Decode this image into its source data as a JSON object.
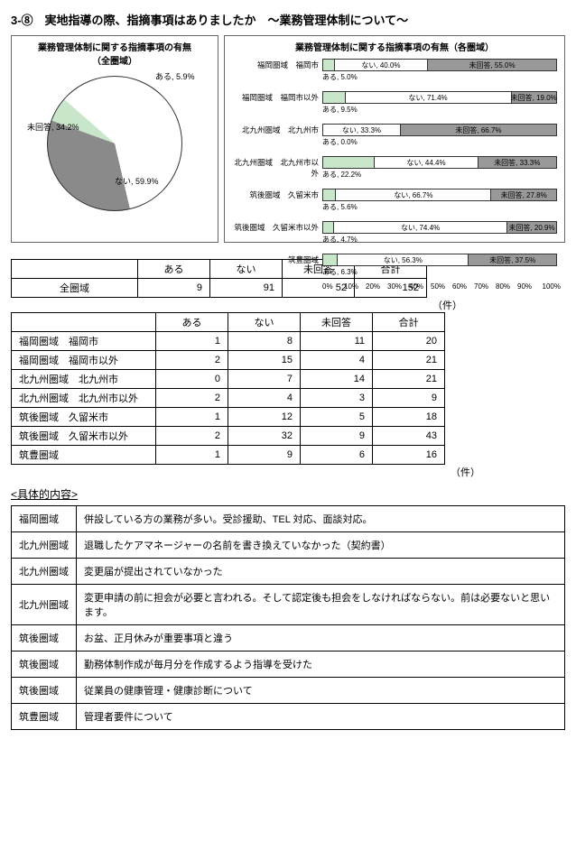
{
  "title": "3-⑧　実地指導の際、指摘事項はありましたか　～業務管理体制について～",
  "pie": {
    "title": "業務管理体制に関する指摘事項の有無\n（全圏域）",
    "slices": [
      {
        "label": "ある, 5.9%",
        "value": 5.9,
        "color": "#c8e6c9"
      },
      {
        "label": "ない, 59.9%",
        "value": 59.9,
        "color": "#ffffff"
      },
      {
        "label": "未回答, 34.2%",
        "value": 34.2,
        "color": "#8a8a8a"
      }
    ],
    "bg": "#fff0f0"
  },
  "bar": {
    "title": "業務管理体制に関する指摘事項の有無（各圏域）",
    "categories": [
      {
        "name": "福岡圏域　福岡市",
        "aru": 5.0,
        "nai": 40.0,
        "mi": 55.0
      },
      {
        "name": "福岡圏域　福岡市以外",
        "aru": 9.5,
        "nai": 71.4,
        "mi": 19.0
      },
      {
        "name": "北九州圏域　北九州市",
        "aru": 0.0,
        "nai": 33.3,
        "mi": 66.7
      },
      {
        "name": "北九州圏域　北九州市以外",
        "aru": 22.2,
        "nai": 44.4,
        "mi": 33.3
      },
      {
        "name": "筑後圏域　久留米市",
        "aru": 5.6,
        "nai": 66.7,
        "mi": 27.8
      },
      {
        "name": "筑後圏域　久留米市以外",
        "aru": 4.7,
        "nai": 74.4,
        "mi": 20.9
      },
      {
        "name": "筑豊圏域",
        "aru": 6.3,
        "nai": 56.3,
        "mi": 37.5
      }
    ],
    "seg_labels": {
      "aru": "ある",
      "nai": "ない",
      "mi": "未回答"
    },
    "axis": [
      "0%",
      "10%",
      "20%",
      "30%",
      "40%",
      "50%",
      "60%",
      "70%",
      "80%",
      "90%",
      "100%"
    ]
  },
  "summary": {
    "headers": [
      "",
      "ある",
      "ない",
      "未回答",
      "合計"
    ],
    "row_label": "全圏域",
    "values": [
      9,
      91,
      52,
      152
    ],
    "unit": "（件）"
  },
  "detail": {
    "headers": [
      "",
      "ある",
      "ない",
      "未回答",
      "合計"
    ],
    "rows": [
      {
        "label": "福岡圏域　福岡市",
        "vals": [
          1,
          8,
          11,
          20
        ]
      },
      {
        "label": "福岡圏域　福岡市以外",
        "vals": [
          2,
          15,
          4,
          21
        ]
      },
      {
        "label": "北九州圏域　北九州市",
        "vals": [
          0,
          7,
          14,
          21
        ]
      },
      {
        "label": "北九州圏域　北九州市以外",
        "vals": [
          2,
          4,
          3,
          9
        ]
      },
      {
        "label": "筑後圏域　久留米市",
        "vals": [
          1,
          12,
          5,
          18
        ]
      },
      {
        "label": "筑後圏域　久留米市以外",
        "vals": [
          2,
          32,
          9,
          43
        ]
      },
      {
        "label": "筑豊圏域",
        "vals": [
          1,
          9,
          6,
          16
        ]
      }
    ],
    "unit": "（件）"
  },
  "content_hdr": "<具体的内容>",
  "content": [
    {
      "region": "福岡圏域",
      "text": "併設している方の業務が多い。受診援助、TEL 対応、面談対応。"
    },
    {
      "region": "北九州圏域",
      "text": "退職したケアマネージャーの名前を書き換えていなかった（契約書）"
    },
    {
      "region": "北九州圏域",
      "text": "変更届が提出されていなかった"
    },
    {
      "region": "北九州圏域",
      "text": "変更申請の前に担会が必要と言われる。そして認定後も担会をしなければならない。前は必要ないと思います。"
    },
    {
      "region": "筑後圏域",
      "text": "お盆、正月休みが重要事項と違う"
    },
    {
      "region": "筑後圏域",
      "text": "勤務体制作成が毎月分を作成するよう指導を受けた"
    },
    {
      "region": "筑後圏域",
      "text": "従業員の健康管理・健康診断について"
    },
    {
      "region": "筑豊圏域",
      "text": "管理者要件について"
    }
  ]
}
